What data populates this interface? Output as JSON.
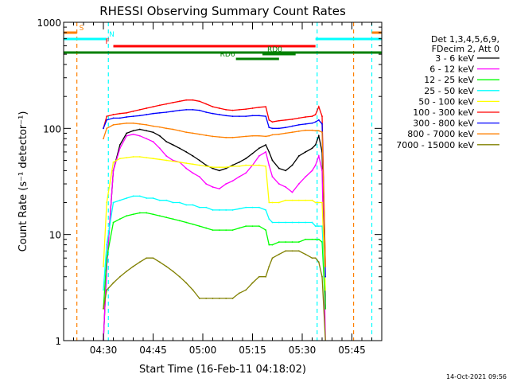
{
  "chart_data": {
    "type": "line",
    "title": "RHESSI Observing Summary Count Rates",
    "xlabel": "Start Time (16-Feb-11 04:18:02)",
    "ylabel": "Count Rate (s⁻¹ detector⁻¹)",
    "y_scale": "log",
    "ylim": [
      1,
      1000
    ],
    "xlim_minutes": [
      0,
      96
    ],
    "x_ticks": [
      {
        "minute": 12,
        "label": "04:30"
      },
      {
        "minute": 27,
        "label": "04:45"
      },
      {
        "minute": 42,
        "label": "05:00"
      },
      {
        "minute": 57,
        "label": "05:15"
      },
      {
        "minute": 72,
        "label": "05:30"
      },
      {
        "minute": 87,
        "label": "05:45"
      }
    ],
    "y_ticks": [
      {
        "value": 1,
        "label": "1"
      },
      {
        "value": 10,
        "label": "10"
      },
      {
        "value": 100,
        "label": "100"
      },
      {
        "value": 1000,
        "label": "1000"
      }
    ],
    "legend": {
      "placement": "right",
      "header": [
        "Det 1,3,4,5,6,9,",
        "FDecim 2, Att 0"
      ]
    },
    "series": [
      {
        "name": "3 - 6 keV",
        "color": "#000000",
        "x": [
          12,
          13,
          15,
          17,
          19,
          21,
          23,
          25,
          27,
          29,
          31,
          33,
          35,
          37,
          39,
          41,
          43,
          45,
          47,
          49,
          51,
          53,
          55,
          57,
          59,
          61,
          62,
          63,
          65,
          67,
          69,
          71,
          73,
          75,
          76,
          77,
          78,
          79
        ],
        "y": [
          1,
          5,
          40,
          70,
          90,
          95,
          98,
          95,
          92,
          85,
          75,
          70,
          65,
          60,
          55,
          50,
          45,
          42,
          40,
          42,
          45,
          48,
          52,
          58,
          65,
          70,
          60,
          50,
          42,
          40,
          45,
          55,
          60,
          65,
          70,
          85,
          60,
          2
        ]
      },
      {
        "name": "6 - 12 keV",
        "color": "#ff00ff",
        "x": [
          12,
          13,
          15,
          17,
          19,
          21,
          23,
          25,
          27,
          29,
          31,
          33,
          35,
          37,
          39,
          41,
          43,
          45,
          47,
          49,
          51,
          53,
          55,
          57,
          59,
          61,
          62,
          63,
          65,
          67,
          69,
          71,
          73,
          75,
          76,
          77,
          78,
          79
        ],
        "y": [
          1,
          5,
          40,
          65,
          85,
          88,
          85,
          80,
          75,
          65,
          55,
          50,
          48,
          42,
          38,
          35,
          30,
          28,
          27,
          30,
          32,
          35,
          38,
          45,
          55,
          60,
          45,
          35,
          30,
          28,
          25,
          30,
          35,
          40,
          45,
          55,
          40,
          1
        ]
      },
      {
        "name": "12 - 25 keV",
        "color": "#00ff00",
        "x": [
          12,
          13,
          15,
          17,
          19,
          21,
          23,
          25,
          27,
          29,
          31,
          33,
          35,
          37,
          39,
          41,
          43,
          45,
          47,
          49,
          51,
          53,
          55,
          57,
          59,
          61,
          62,
          63,
          65,
          67,
          69,
          71,
          73,
          75,
          76,
          77,
          78,
          79
        ],
        "y": [
          2,
          6,
          13,
          14,
          15,
          15.5,
          16,
          16,
          15.5,
          15,
          14.5,
          14,
          13.5,
          13,
          12.5,
          12,
          11.5,
          11,
          11,
          11,
          11,
          11.5,
          12,
          12,
          12,
          11,
          8,
          8,
          8.5,
          8.5,
          8.5,
          8.5,
          9,
          9,
          9,
          9,
          8.5,
          2
        ]
      },
      {
        "name": "25 - 50 keV",
        "color": "#00ffff",
        "x": [
          12,
          13,
          15,
          17,
          19,
          21,
          23,
          25,
          27,
          29,
          31,
          33,
          35,
          37,
          39,
          41,
          43,
          45,
          47,
          49,
          51,
          53,
          55,
          57,
          59,
          61,
          62,
          63,
          65,
          67,
          69,
          71,
          73,
          75,
          76,
          77,
          78,
          79
        ],
        "y": [
          3,
          8,
          20,
          21,
          22,
          23,
          23,
          22,
          22,
          21,
          21,
          20,
          20,
          19,
          19,
          18,
          18,
          17,
          17,
          17,
          17,
          17.5,
          18,
          18,
          18,
          17,
          14,
          13,
          13,
          13,
          13,
          13,
          13,
          13,
          12,
          12,
          12,
          3
        ]
      },
      {
        "name": "50 - 100 keV",
        "color": "#ffff00",
        "x": [
          12,
          13,
          15,
          17,
          19,
          21,
          23,
          25,
          27,
          29,
          31,
          33,
          35,
          37,
          39,
          41,
          43,
          45,
          47,
          49,
          51,
          53,
          55,
          57,
          59,
          61,
          62,
          63,
          65,
          67,
          69,
          71,
          73,
          75,
          76,
          77,
          78,
          79
        ],
        "y": [
          5,
          20,
          48,
          52,
          53,
          54,
          54,
          53,
          52,
          51,
          50,
          49,
          48,
          47,
          46,
          45,
          44,
          43,
          43,
          43,
          44,
          44,
          45,
          45,
          45,
          44,
          20,
          20,
          20,
          21,
          21,
          21,
          21,
          21,
          20,
          20,
          20,
          3
        ]
      },
      {
        "name": "100 - 300 keV",
        "color": "#ff0000",
        "x": [
          12,
          13,
          15,
          17,
          19,
          21,
          23,
          25,
          27,
          29,
          31,
          33,
          35,
          37,
          39,
          41,
          43,
          45,
          47,
          49,
          51,
          53,
          55,
          57,
          59,
          61,
          62,
          63,
          65,
          67,
          69,
          71,
          73,
          75,
          76,
          77,
          78,
          79
        ],
        "y": [
          100,
          130,
          135,
          138,
          140,
          145,
          150,
          155,
          160,
          165,
          170,
          175,
          180,
          185,
          185,
          180,
          170,
          160,
          155,
          150,
          148,
          150,
          152,
          155,
          158,
          160,
          120,
          115,
          118,
          120,
          122,
          125,
          128,
          130,
          135,
          160,
          130,
          5
        ]
      },
      {
        "name": "300 - 800 keV",
        "color": "#0000ff",
        "x": [
          12,
          13,
          15,
          17,
          19,
          21,
          23,
          25,
          27,
          29,
          31,
          33,
          35,
          37,
          39,
          41,
          43,
          45,
          47,
          49,
          51,
          53,
          55,
          57,
          59,
          61,
          62,
          63,
          65,
          67,
          69,
          71,
          73,
          75,
          76,
          77,
          78,
          79
        ],
        "y": [
          100,
          120,
          125,
          125,
          128,
          130,
          132,
          135,
          138,
          140,
          142,
          145,
          148,
          150,
          150,
          148,
          142,
          138,
          135,
          132,
          130,
          130,
          130,
          132,
          132,
          130,
          102,
          100,
          100,
          102,
          105,
          108,
          110,
          112,
          115,
          120,
          110,
          4
        ]
      },
      {
        "name": "800 - 7000 keV",
        "color": "#ff8000",
        "x": [
          12,
          13,
          15,
          17,
          19,
          21,
          23,
          25,
          27,
          29,
          31,
          33,
          35,
          37,
          39,
          41,
          43,
          45,
          47,
          49,
          51,
          53,
          55,
          57,
          59,
          61,
          62,
          63,
          65,
          67,
          69,
          71,
          73,
          75,
          76,
          77,
          78,
          79
        ],
        "y": [
          80,
          100,
          108,
          110,
          112,
          112,
          110,
          108,
          105,
          103,
          100,
          98,
          95,
          92,
          90,
          88,
          86,
          84,
          83,
          82,
          82,
          83,
          84,
          85,
          85,
          84,
          85,
          87,
          88,
          90,
          92,
          94,
          96,
          96,
          95,
          95,
          92,
          5
        ]
      },
      {
        "name": "7000 - 15000 keV",
        "color": "#808000",
        "x": [
          12,
          13,
          15,
          17,
          19,
          21,
          23,
          25,
          27,
          29,
          31,
          33,
          35,
          37,
          39,
          41,
          43,
          45,
          47,
          49,
          51,
          53,
          55,
          57,
          59,
          61,
          62,
          63,
          65,
          67,
          69,
          71,
          73,
          75,
          76,
          77,
          78,
          79
        ],
        "y": [
          2,
          3,
          3.5,
          4,
          4.5,
          5,
          5.5,
          6,
          6,
          5.5,
          5,
          4.5,
          4,
          3.5,
          3,
          2.5,
          2.5,
          2.5,
          2.5,
          2.5,
          2.5,
          2.8,
          3,
          3.5,
          4,
          4,
          5,
          6,
          6.5,
          7,
          7,
          7,
          6.5,
          6,
          6,
          5.5,
          4,
          1
        ]
      }
    ],
    "state_bars": [
      {
        "label": "S",
        "color": "#ff8000",
        "segments": [
          [
            0,
            4
          ],
          [
            93,
            96
          ]
        ]
      },
      {
        "label": "N",
        "color": "#00ffff",
        "segments": [
          [
            0,
            13
          ],
          [
            76,
            96
          ]
        ]
      },
      {
        "label": "F",
        "color": "#ff0000",
        "segments": [
          [
            15,
            76
          ]
        ]
      },
      {
        "label": "RD0",
        "color": "#008000",
        "segments": [
          [
            60,
            70
          ]
        ]
      },
      {
        "label": "RD6",
        "color": "#008000",
        "segments": [
          [
            52,
            65
          ]
        ]
      },
      {
        "label": "",
        "color": "#008000",
        "segments": [
          [
            0,
            96
          ]
        ]
      }
    ],
    "vertical_markers": [
      {
        "color": "#ff8000",
        "minute": 4
      },
      {
        "color": "#00ffff",
        "minute": 13.5
      },
      {
        "color": "#00ffff",
        "minute": 76.5
      },
      {
        "color": "#ff8000",
        "minute": 87.5
      },
      {
        "color": "#00ffff",
        "minute": 93
      }
    ],
    "timestamp": "14-Oct-2021 09:56"
  }
}
